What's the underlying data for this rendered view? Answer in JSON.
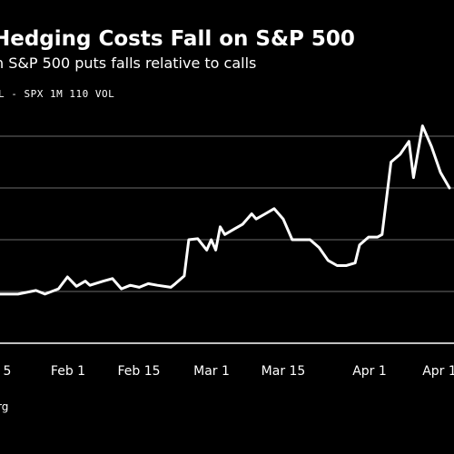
{
  "chart_data": {
    "type": "line",
    "title": "Hedging Costs Fall on S&P 500",
    "subtitle": "h S&P 500 puts falls relative to calls",
    "legend_label": "L - SPX 1M 110 VOL",
    "source": "rg",
    "x_tick_labels": [
      "5",
      "Feb 1",
      "Feb 15",
      "Mar 1",
      "Mar 15",
      "Apr 1",
      "Apr 1"
    ],
    "ylim": [
      0,
      5
    ],
    "grid": "horizontal",
    "series": [
      {
        "points": [
          [
            0,
            0.95
          ],
          [
            4,
            0.95
          ],
          [
            8,
            1.02
          ],
          [
            10,
            0.95
          ],
          [
            13,
            1.05
          ],
          [
            15,
            1.28
          ],
          [
            17,
            1.1
          ],
          [
            19,
            1.2
          ],
          [
            20,
            1.12
          ],
          [
            23,
            1.2
          ],
          [
            25,
            1.25
          ],
          [
            27,
            1.05
          ],
          [
            29,
            1.12
          ],
          [
            31,
            1.08
          ],
          [
            33,
            1.15
          ],
          [
            35,
            1.12
          ],
          [
            38,
            1.08
          ],
          [
            39,
            1.15
          ],
          [
            41,
            1.3
          ],
          [
            42,
            2.0
          ],
          [
            44,
            2.02
          ],
          [
            46,
            1.8
          ],
          [
            47,
            2.0
          ],
          [
            48,
            1.8
          ],
          [
            49,
            2.25
          ],
          [
            50,
            2.1
          ],
          [
            52,
            2.2
          ],
          [
            54,
            2.3
          ],
          [
            56,
            2.5
          ],
          [
            57,
            2.4
          ],
          [
            59,
            2.5
          ],
          [
            61,
            2.6
          ],
          [
            63,
            2.4
          ],
          [
            65,
            2.0
          ],
          [
            67,
            2.0
          ],
          [
            69,
            2.0
          ],
          [
            71,
            1.85
          ],
          [
            73,
            1.6
          ],
          [
            75,
            1.5
          ],
          [
            77,
            1.5
          ],
          [
            79,
            1.55
          ],
          [
            80,
            1.9
          ],
          [
            82,
            2.05
          ],
          [
            84,
            2.05
          ],
          [
            85,
            2.1
          ],
          [
            87,
            3.5
          ],
          [
            89,
            3.65
          ],
          [
            91,
            3.9
          ],
          [
            92,
            3.2
          ],
          [
            94,
            4.2
          ],
          [
            96,
            3.8
          ],
          [
            98,
            3.3
          ],
          [
            100,
            3.0
          ]
        ]
      }
    ]
  }
}
